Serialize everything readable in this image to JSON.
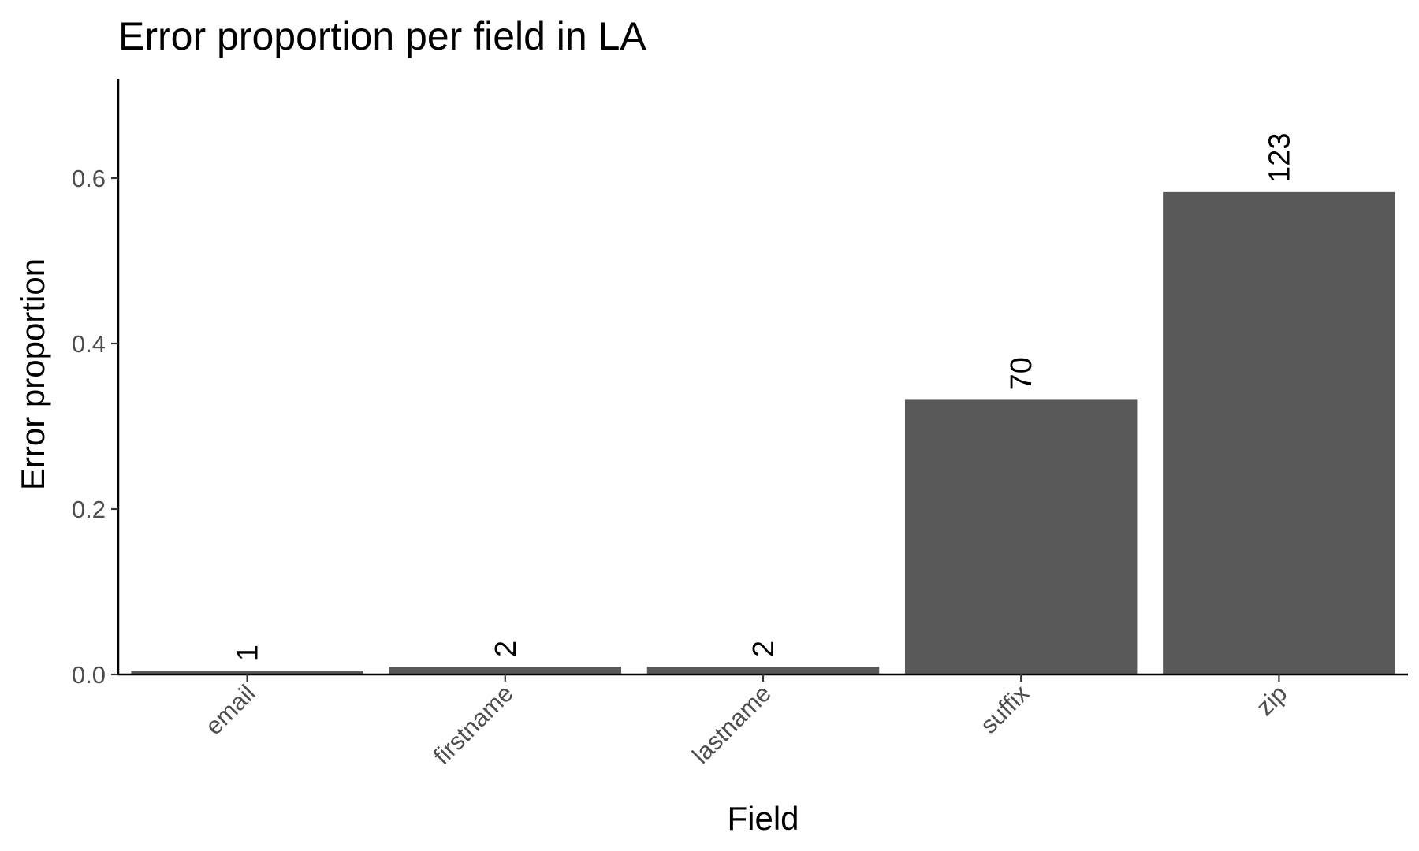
{
  "chart_data": {
    "type": "bar",
    "title": "Error proportion per field in LA",
    "xlabel": "Field",
    "ylabel": "Error proportion",
    "categories": [
      "email",
      "firstname",
      "lastname",
      "suffix",
      "zip"
    ],
    "values": [
      0.0047,
      0.0095,
      0.0095,
      0.332,
      0.583
    ],
    "data_labels": [
      "1",
      "2",
      "2",
      "70",
      "123"
    ],
    "yticks": [
      0.0,
      0.2,
      0.4,
      0.6
    ],
    "ytick_labels": [
      "0.0",
      "0.2",
      "0.4",
      "0.6"
    ],
    "ylim": [
      0,
      0.72
    ],
    "grid": false,
    "legend": "none",
    "bar_color": "#595959"
  }
}
